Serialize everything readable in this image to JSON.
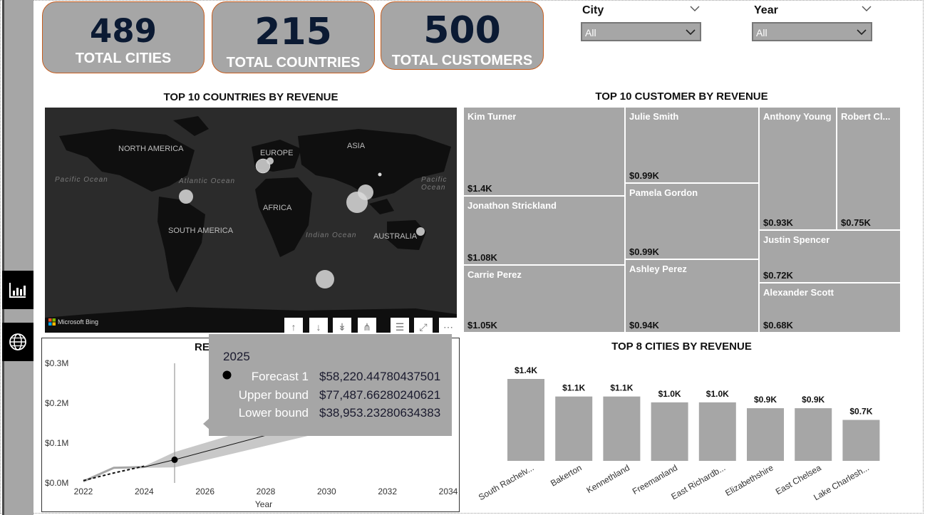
{
  "kpis": [
    {
      "value": "489",
      "label": "TOTAL CITIES"
    },
    {
      "value": "215",
      "label": "TOTAL COUNTRIES"
    },
    {
      "value": "500",
      "label": "TOTAL CUSTOMERS"
    }
  ],
  "slicers": {
    "city": {
      "title": "City",
      "value": "All"
    },
    "year": {
      "title": "Year",
      "value": "All"
    }
  },
  "map": {
    "title": "TOP 10 COUNTRIES BY REVENUE",
    "continents": [
      "NORTH AMERICA",
      "EUROPE",
      "ASIA",
      "AFRICA",
      "SOUTH AMERICA",
      "AUSTRALIA"
    ],
    "oceans": [
      "Pacific Ocean",
      "Atlantic Ocean",
      "Pacific Ocean",
      "Indian Ocean"
    ],
    "attribution": "Microsoft Bing"
  },
  "treemap": {
    "title": "TOP 10 CUSTOMER BY REVENUE",
    "tiles": [
      {
        "name": "Kim Turner",
        "value": "$1.4K"
      },
      {
        "name": "Jonathon Strickland",
        "value": "$1.08K"
      },
      {
        "name": "Carrie Perez",
        "value": "$1.05K"
      },
      {
        "name": "Julie Smith",
        "value": "$0.99K"
      },
      {
        "name": "Pamela Gordon",
        "value": "$0.99K"
      },
      {
        "name": "Ashley Perez",
        "value": "$0.94K"
      },
      {
        "name": "Anthony Young",
        "value": "$0.93K"
      },
      {
        "name": "Robert Cl...",
        "value": "$0.75K"
      },
      {
        "name": "Justin Spencer",
        "value": "$0.72K"
      },
      {
        "name": "Alexander Scott",
        "value": "$0.68K"
      }
    ]
  },
  "line_card": {
    "title_fragment": "RE",
    "tooltip": {
      "year": "2025",
      "rows": [
        {
          "label": "Forecast 1",
          "value": "$58,220.44780437501"
        },
        {
          "label": "Upper bound",
          "value": "$77,487.66280240621"
        },
        {
          "label": "Lower bound",
          "value": "$38,953.23280634383"
        }
      ]
    }
  },
  "chart_data": [
    {
      "type": "line",
      "title": "",
      "xlabel": "Year",
      "ylabel": "",
      "x_ticks": [
        "2022",
        "2024",
        "2026",
        "2028",
        "2030",
        "2032",
        "2034"
      ],
      "y_ticks": [
        "$0.0M",
        "$0.1M",
        "$0.2M",
        "$0.3M"
      ],
      "xlim": [
        2022,
        2034
      ],
      "ylim": [
        0,
        300000
      ],
      "series": [
        {
          "x": [
            2022,
            2023,
            2024
          ],
          "y": [
            4000,
            38000,
            40000
          ]
        },
        {
          "x": [
            2022,
            2023,
            2024
          ],
          "y": [
            6000,
            25000,
            42000
          ],
          "style": "dashed"
        },
        {
          "x": [
            2024,
            2025,
            2029.5
          ],
          "y": [
            40000,
            58220.45,
            150000
          ],
          "style": "forecast"
        }
      ],
      "forecast_band": {
        "x": [
          2024,
          2025,
          2029.5
        ],
        "lower": [
          38000,
          38953.23,
          120000
        ],
        "upper": [
          42000,
          77487.66,
          180000
        ]
      },
      "highlight": {
        "x": 2025,
        "y": 58220.45
      }
    },
    {
      "type": "bar",
      "title": "TOP 8 CITIES BY REVENUE",
      "categories": [
        "South Rachelv...",
        "Bakerton",
        "Kennethland",
        "Freemanland",
        "East Richardb...",
        "Elizabethshire",
        "East Chelsea",
        "Lake Charlesh..."
      ],
      "values": [
        1.4,
        1.1,
        1.1,
        1.0,
        1.0,
        0.9,
        0.9,
        0.7
      ],
      "data_labels": [
        "$1.4K",
        "$1.1K",
        "$1.1K",
        "$1.0K",
        "$1.0K",
        "$0.9K",
        "$0.9K",
        "$0.7K"
      ],
      "ylim": [
        0,
        1.4
      ]
    }
  ],
  "colors": {
    "accent": "#c65d1e",
    "tile": "#a6a6a6",
    "navy": "#0b1a33",
    "map_bg": "#2b2b2b"
  },
  "icons": [
    "bar-chart-icon",
    "globe-icon",
    "chevron-down-icon",
    "drill-up-icon",
    "drill-down-icon",
    "expand-all-icon",
    "hierarchy-icon",
    "filter-icon",
    "focus-mode-icon",
    "more-options-icon"
  ]
}
